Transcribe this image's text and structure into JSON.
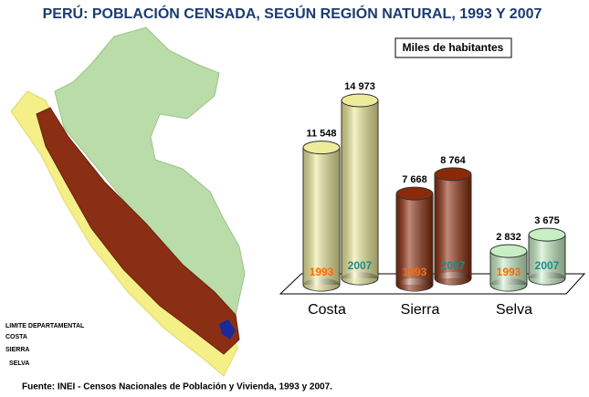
{
  "chart_data": {
    "type": "bar",
    "title": "PERÚ: POBLACIÓN CENSADA, SEGÚN  REGIÓN NATURAL, 1993 Y 2007",
    "unit_label": "Miles de habitantes",
    "source": "Fuente: INEI - Censos Nacionales de Población y Vivienda, 1993 y 2007.",
    "categories": [
      "Costa",
      "Sierra",
      "Selva"
    ],
    "category_colors": [
      "#eeeb9a",
      "#8a2a0a",
      "#c6efc4"
    ],
    "series": [
      {
        "name": "1993",
        "color": "#ff6a00",
        "values": [
          11548,
          7668,
          2832
        ],
        "value_labels": [
          "11 548",
          "7 668",
          "2 832"
        ]
      },
      {
        "name": "2007",
        "color": "#1f8a8a",
        "values": [
          14973,
          8764,
          3675
        ],
        "value_labels": [
          "14 973",
          "8 764",
          "3 675"
        ]
      }
    ]
  },
  "map_legend": [
    "LIMITE DEPARTAMENTAL",
    "COSTA",
    "SIERRA",
    "SELVA"
  ]
}
